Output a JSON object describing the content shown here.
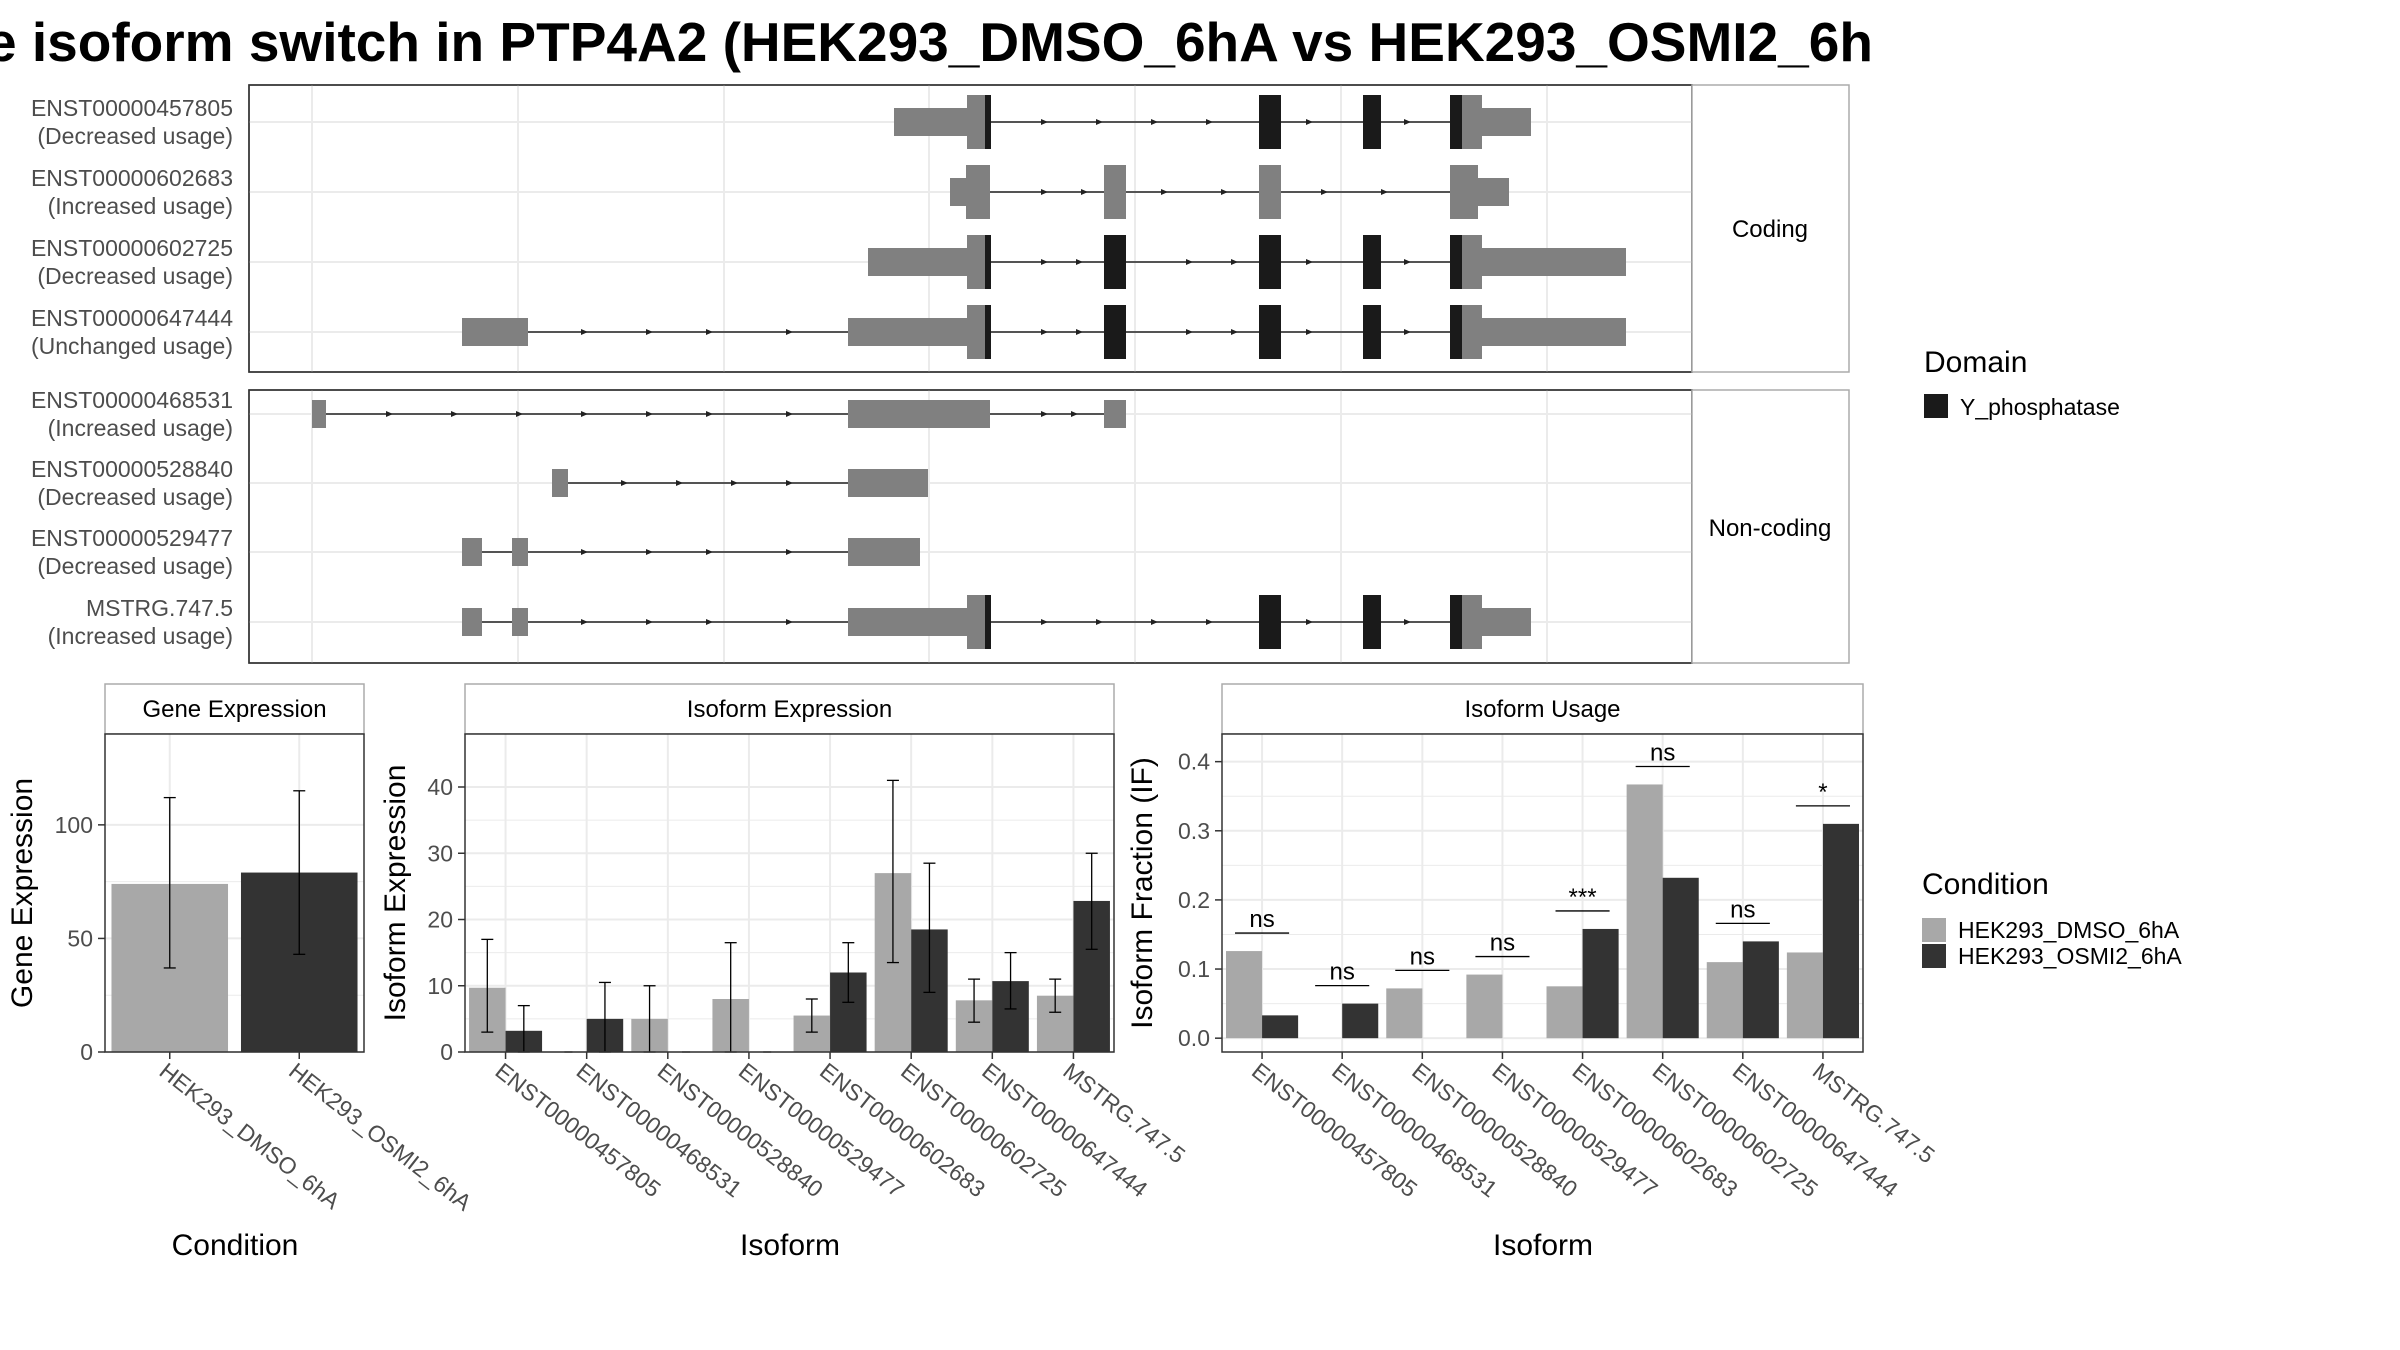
{
  "title": "e isoform switch in PTP4A2 (HEK293_DMSO_6hA vs HEK293_OSMI2_6h",
  "colors": {
    "exon": "#808080",
    "domain": "#1a1a1a",
    "dmso": "#a8a8a8",
    "osmi": "#333333",
    "strip": "#ffffff",
    "grid": "#ebebeb"
  },
  "domain_legend": {
    "title": "Domain",
    "items": [
      {
        "label": "Y_phosphatase",
        "color": "#1a1a1a"
      }
    ]
  },
  "condition_legend": {
    "title": "Condition",
    "items": [
      {
        "label": "HEK293_DMSO_6hA",
        "color": "#a8a8a8"
      },
      {
        "label": "HEK293_OSMI2_6hA",
        "color": "#333333"
      }
    ]
  },
  "structure": {
    "groups": [
      {
        "label": "Coding",
        "transcripts": [
          {
            "id": "ENST00000457805",
            "usage": "(Decreased usage)"
          },
          {
            "id": "ENST00000602683",
            "usage": "(Increased usage)"
          },
          {
            "id": "ENST00000602725",
            "usage": "(Decreased usage)"
          },
          {
            "id": "ENST00000647444",
            "usage": "(Unchanged usage)"
          }
        ]
      },
      {
        "label": "Non-coding",
        "transcripts": [
          {
            "id": "ENST00000468531",
            "usage": "(Increased usage)"
          },
          {
            "id": "ENST00000528840",
            "usage": "(Decreased usage)"
          },
          {
            "id": "ENST00000529477",
            "usage": "(Decreased usage)"
          },
          {
            "id": "MSTRG.747.5",
            "usage": "(Increased usage)"
          }
        ]
      }
    ]
  },
  "chart_data": [
    {
      "type": "bar",
      "title": "Gene Expression",
      "xlabel": "Condition",
      "ylabel": "Gene Expression",
      "ylim": [
        0,
        140
      ],
      "yticks": [
        0,
        50,
        100
      ],
      "categories": [
        "HEK293_DMSO_6hA",
        "HEK293_OSMI2_6hA"
      ],
      "values": [
        74,
        79
      ],
      "error_low": [
        37,
        43
      ],
      "error_high": [
        112,
        115
      ]
    },
    {
      "type": "bar",
      "title": "Isoform Expression",
      "xlabel": "Isoform",
      "ylabel": "Isoform Expression",
      "ylim": [
        0,
        48
      ],
      "yticks": [
        0,
        10,
        20,
        30,
        40
      ],
      "categories": [
        "ENST00000457805",
        "ENST00000468531",
        "ENST00000528840",
        "ENST00000529477",
        "ENST00000602683",
        "ENST00000602725",
        "ENST00000647444",
        "MSTRG.747.5"
      ],
      "series": [
        {
          "name": "HEK293_DMSO_6hA",
          "values": [
            9.7,
            0,
            5,
            8,
            5.5,
            27,
            7.8,
            8.5
          ],
          "error_low": [
            3,
            0,
            0,
            0,
            3,
            13.5,
            4.5,
            6
          ],
          "error_high": [
            17,
            0,
            10,
            16.5,
            8,
            41,
            11,
            11
          ]
        },
        {
          "name": "HEK293_OSMI2_6hA",
          "values": [
            3.2,
            5,
            0,
            0,
            12,
            18.5,
            10.7,
            22.8
          ],
          "error_low": [
            0,
            0,
            0,
            0,
            7.5,
            9,
            6.5,
            15.5
          ],
          "error_high": [
            7,
            10.5,
            0,
            0,
            16.5,
            28.5,
            15,
            30
          ]
        }
      ]
    },
    {
      "type": "bar",
      "title": "Isoform Usage",
      "xlabel": "Isoform",
      "ylabel": "Isoform Fraction (IF)",
      "ylim": [
        -0.02,
        0.44
      ],
      "yticks": [
        0.0,
        0.1,
        0.2,
        0.3,
        0.4
      ],
      "categories": [
        "ENST00000457805",
        "ENST00000468531",
        "ENST00000528840",
        "ENST00000529477",
        "ENST00000602683",
        "ENST00000602725",
        "ENST00000647444",
        "MSTRG.747.5"
      ],
      "series": [
        {
          "name": "HEK293_DMSO_6hA",
          "values": [
            0.126,
            0,
            0.072,
            0.092,
            0.075,
            0.367,
            0.11,
            0.124
          ]
        },
        {
          "name": "HEK293_OSMI2_6hA",
          "values": [
            0.033,
            0.05,
            0,
            0,
            0.158,
            0.232,
            0.14,
            0.31
          ]
        }
      ],
      "significance": [
        "ns",
        "ns",
        "ns",
        "ns",
        "***",
        "ns",
        "ns",
        "*"
      ]
    }
  ]
}
